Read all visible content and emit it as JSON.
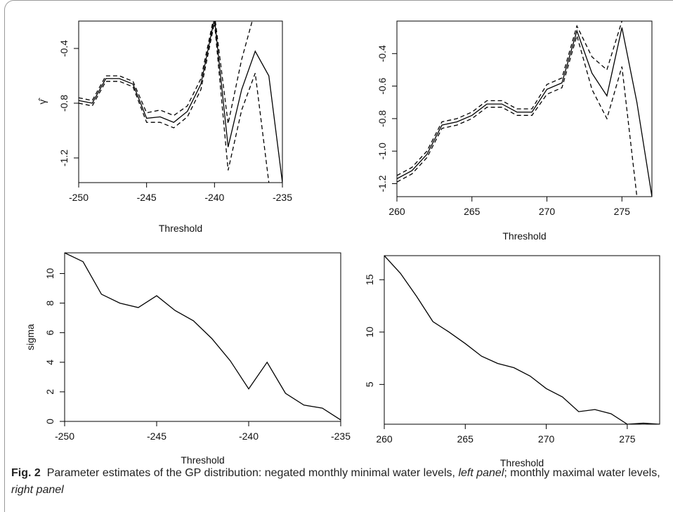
{
  "caption": {
    "figure_label": "Fig. 2",
    "text_before_left": "Parameter estimates of the GP distribution: negated monthly minimal water levels, ",
    "left_panel": "left panel",
    "text_between": "; monthly maximal water levels, ",
    "right_panel": "right panel"
  },
  "chart_data": [
    {
      "type": "line",
      "title": "",
      "xlabel": "Threshold",
      "ylabel": "γ̂",
      "xlim": [
        -250,
        -235
      ],
      "ylim": [
        -1.38,
        -0.2
      ],
      "x_ticks": [
        -250,
        -245,
        -240,
        -235
      ],
      "x_tick_labels": [
        "-250",
        "-245",
        "-240",
        "-235"
      ],
      "y_ticks": [
        -1.2,
        -0.8,
        -0.4
      ],
      "y_tick_labels": [
        "-1.2",
        "-0.8",
        "-0.4"
      ],
      "x": [
        -250,
        -249,
        -248,
        -247,
        -246,
        -245,
        -244,
        -243,
        -242,
        -241,
        -240,
        -239,
        -238,
        -237,
        -236,
        -235
      ],
      "series": [
        {
          "style": "solid",
          "values": [
            -0.78,
            -0.8,
            -0.62,
            -0.62,
            -0.66,
            -0.91,
            -0.9,
            -0.94,
            -0.86,
            -0.66,
            -0.18,
            -1.12,
            -0.7,
            -0.42,
            -0.6,
            -1.38
          ]
        },
        {
          "style": "dashed",
          "values": [
            -0.76,
            -0.78,
            -0.6,
            -0.6,
            -0.64,
            -0.87,
            -0.85,
            -0.89,
            -0.82,
            -0.62,
            -0.15,
            -0.95,
            -0.48,
            -0.12,
            null,
            null
          ]
        },
        {
          "style": "dashed",
          "values": [
            -0.8,
            -0.82,
            -0.64,
            -0.64,
            -0.68,
            -0.94,
            -0.94,
            -0.98,
            -0.9,
            -0.7,
            -0.21,
            -1.29,
            -0.85,
            -0.58,
            -1.38,
            null
          ]
        }
      ]
    },
    {
      "type": "line",
      "title": "",
      "xlabel": "Threshold",
      "ylabel": "",
      "xlim": [
        260,
        277
      ],
      "ylim": [
        -1.28,
        -0.2
      ],
      "x_ticks": [
        260,
        265,
        270,
        275
      ],
      "x_tick_labels": [
        "260",
        "265",
        "270",
        "275"
      ],
      "y_ticks": [
        -1.2,
        -1.0,
        -0.8,
        -0.6,
        -0.4
      ],
      "y_tick_labels": [
        "-1.2",
        "-1.0",
        "-0.8",
        "-0.6",
        "-0.4"
      ],
      "x": [
        260,
        261,
        262,
        263,
        264,
        265,
        266,
        267,
        268,
        269,
        270,
        271,
        272,
        273,
        274,
        275,
        276,
        277
      ],
      "series": [
        {
          "style": "solid",
          "values": [
            -1.17,
            -1.12,
            -1.02,
            -0.84,
            -0.82,
            -0.78,
            -0.71,
            -0.71,
            -0.76,
            -0.76,
            -0.62,
            -0.58,
            -0.26,
            -0.52,
            -0.66,
            -0.24,
            -0.7,
            -1.28
          ]
        },
        {
          "style": "dashed",
          "values": [
            -1.15,
            -1.1,
            -1.0,
            -0.82,
            -0.8,
            -0.76,
            -0.69,
            -0.69,
            -0.74,
            -0.74,
            -0.59,
            -0.55,
            -0.23,
            -0.42,
            -0.5,
            -0.2,
            null,
            null
          ]
        },
        {
          "style": "dashed",
          "values": [
            -1.19,
            -1.14,
            -1.04,
            -0.86,
            -0.84,
            -0.8,
            -0.73,
            -0.73,
            -0.78,
            -0.78,
            -0.65,
            -0.61,
            -0.29,
            -0.62,
            -0.8,
            -0.48,
            -1.28,
            null
          ]
        }
      ]
    },
    {
      "type": "line",
      "title": "",
      "xlabel": "Threshold",
      "ylabel": "sigma",
      "xlim": [
        -250,
        -235
      ],
      "ylim": [
        0,
        11.4
      ],
      "x_ticks": [
        -250,
        -245,
        -240,
        -235
      ],
      "x_tick_labels": [
        "-250",
        "-245",
        "-240",
        "-235"
      ],
      "y_ticks": [
        0,
        2,
        4,
        6,
        8,
        10
      ],
      "y_tick_labels": [
        "0",
        "2",
        "4",
        "6",
        "8",
        "10"
      ],
      "x": [
        -250,
        -249,
        -248,
        -247,
        -246,
        -245,
        -244,
        -243,
        -242,
        -241,
        -240,
        -239,
        -238,
        -237,
        -236,
        -235
      ],
      "series": [
        {
          "style": "solid",
          "values": [
            11.4,
            10.8,
            8.6,
            8.0,
            7.7,
            8.5,
            7.5,
            6.8,
            5.6,
            4.1,
            2.2,
            4.0,
            1.9,
            1.1,
            0.9,
            0.1
          ]
        }
      ]
    },
    {
      "type": "line",
      "title": "",
      "xlabel": "Threshold",
      "ylabel": "",
      "xlim": [
        260,
        277
      ],
      "ylim": [
        1.2,
        17.3
      ],
      "x_ticks": [
        260,
        265,
        270,
        275
      ],
      "x_tick_labels": [
        "260",
        "265",
        "270",
        "275"
      ],
      "y_ticks": [
        5,
        10,
        15
      ],
      "y_tick_labels": [
        "5",
        "10",
        "15"
      ],
      "x": [
        260,
        261,
        262,
        263,
        264,
        265,
        266,
        267,
        268,
        269,
        270,
        271,
        272,
        273,
        274,
        275,
        276,
        277
      ],
      "series": [
        {
          "style": "solid",
          "values": [
            17.3,
            15.6,
            13.4,
            11.0,
            10.0,
            8.9,
            7.7,
            7.0,
            6.6,
            5.8,
            4.6,
            3.8,
            2.4,
            2.6,
            2.2,
            1.2,
            1.3,
            1.2
          ]
        }
      ]
    }
  ]
}
